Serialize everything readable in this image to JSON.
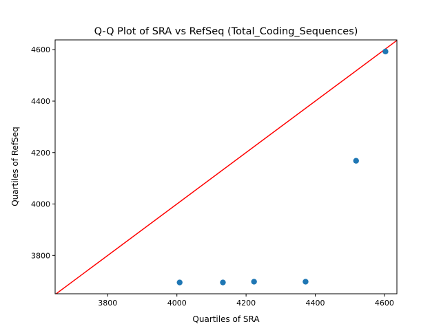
{
  "chart_data": {
    "type": "scatter",
    "title": "Q-Q Plot of SRA vs RefSeq (Total_Coding_Sequences)",
    "xlabel": "Quartiles of SRA",
    "ylabel": "Quartiles of RefSeq",
    "xlim": [
      3648,
      4636
    ],
    "ylim": [
      3651,
      4638
    ],
    "xticks": [
      3800,
      4000,
      4200,
      4400,
      4600
    ],
    "yticks": [
      3800,
      4000,
      4200,
      4400,
      4600
    ],
    "grid": false,
    "series": [
      {
        "color": "#1f77b4",
        "points": [
          {
            "x": 4008,
            "y": 3695
          },
          {
            "x": 4133,
            "y": 3695
          },
          {
            "x": 4223,
            "y": 3698
          },
          {
            "x": 4372,
            "y": 3698
          },
          {
            "x": 4518,
            "y": 4168
          },
          {
            "x": 4603,
            "y": 4593
          }
        ]
      }
    ],
    "reference_line": {
      "type": "y=x",
      "color": "#ff0000"
    }
  }
}
